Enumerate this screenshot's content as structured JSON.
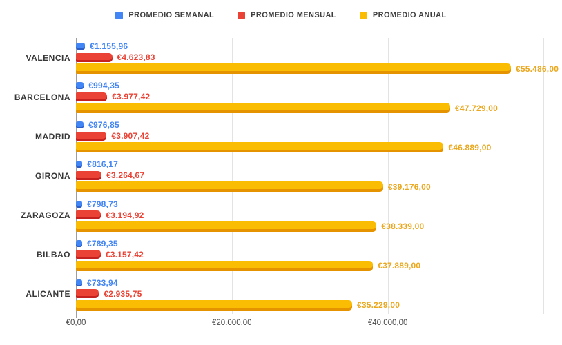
{
  "legend": {
    "position": "top",
    "items": [
      {
        "label": "PROMEDIO SEMANAL",
        "color": "#4285F4"
      },
      {
        "label": "PROMEDIO MENSUAL",
        "color": "#EA4335"
      },
      {
        "label": "PROMEDIO ANUAL",
        "color": "#FBBC04"
      }
    ]
  },
  "chart_data": {
    "type": "bar",
    "orientation": "horizontal",
    "title": "",
    "xlabel": "",
    "ylabel": "",
    "grid": true,
    "legend_position": "top",
    "categories": [
      "VALENCIA",
      "BARCELONA",
      "MADRID",
      "GIRONA",
      "ZARAGOZA",
      "BILBAO",
      "ALICANTE"
    ],
    "series": [
      {
        "name": "PROMEDIO SEMANAL",
        "color": "#4285F4",
        "shade": "#2B5DC9",
        "label_color": "#4285F4",
        "values": [
          1155.96,
          994.35,
          976.85,
          816.17,
          798.73,
          789.35,
          733.94
        ],
        "labels": [
          "€1.155,96",
          "€994,35",
          "€976,85",
          "€816,17",
          "€798,73",
          "€789,35",
          "€733,94"
        ]
      },
      {
        "name": "PROMEDIO MENSUAL",
        "color": "#EA4335",
        "shade": "#C5221F",
        "label_color": "#EA4335",
        "values": [
          4623.83,
          3977.42,
          3907.42,
          3264.67,
          3194.92,
          3157.42,
          2935.75
        ],
        "labels": [
          "€4.623,83",
          "€3.977,42",
          "€3.907,42",
          "€3.264,67",
          "€3.194,92",
          "€3.157,42",
          "€2.935,75"
        ]
      },
      {
        "name": "PROMEDIO ANUAL",
        "color": "#FBBC04",
        "shade": "#E59400",
        "label_color": "#EBA81E",
        "values": [
          55486,
          47729,
          46889,
          39176,
          38339,
          37889,
          35229
        ],
        "labels": [
          "€55.486,00",
          "€47.729,00",
          "€46.889,00",
          "€39.176,00",
          "€38.339,00",
          "€37.889,00",
          "€35.229,00"
        ]
      }
    ],
    "x_axis": {
      "max": 62000,
      "ticks": [
        {
          "value": 0,
          "label": "€0,00"
        },
        {
          "value": 20000,
          "label": "€20.000,00"
        },
        {
          "value": 40000,
          "label": "€40.000,00"
        },
        {
          "value": 60000,
          "label": ""
        }
      ]
    }
  }
}
